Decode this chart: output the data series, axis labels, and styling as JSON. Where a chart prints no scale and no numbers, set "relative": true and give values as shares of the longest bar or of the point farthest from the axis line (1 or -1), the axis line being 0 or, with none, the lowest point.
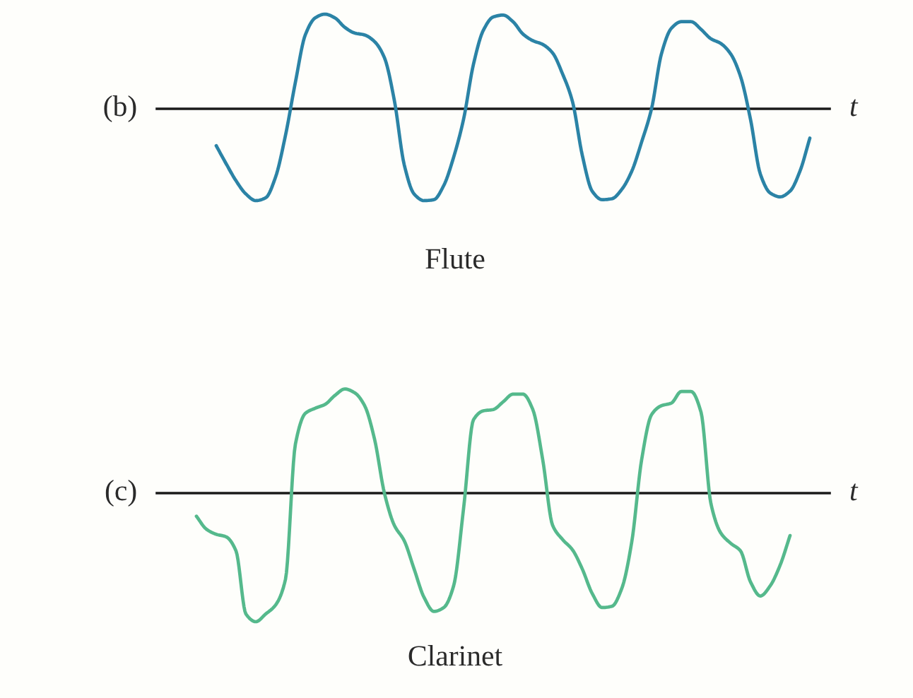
{
  "chart_data": [
    {
      "type": "line",
      "title": "Flute",
      "xlabel": "t",
      "annotations": [
        "(b)"
      ],
      "relative": true,
      "color": "#2b83a6",
      "categories": [
        null,
        null,
        null,
        null,
        null,
        null,
        null,
        null,
        null,
        null,
        null,
        null,
        null,
        null,
        null,
        null,
        null,
        null,
        null,
        null,
        null,
        null,
        null,
        null,
        null,
        null,
        null,
        null,
        null,
        null,
        null,
        null,
        null,
        null,
        null,
        null,
        null,
        null,
        null,
        null,
        null,
        null,
        null,
        null,
        null,
        null,
        null,
        null,
        null,
        null,
        null,
        null,
        null,
        null,
        null,
        null,
        null,
        null,
        null,
        null,
        null,
        null,
        null,
        null,
        null,
        null,
        null,
        null,
        null
      ],
      "values": [
        null,
        null,
        null,
        null,
        null,
        null,
        -0.39,
        -0.58,
        -0.76,
        -0.9,
        -0.97,
        -0.94,
        -0.72,
        -0.28,
        0.28,
        0.78,
        0.96,
        1.0,
        0.96,
        0.86,
        0.8,
        0.78,
        0.71,
        0.54,
        0.09,
        -0.59,
        -0.9,
        -0.97,
        -0.96,
        -0.81,
        -0.51,
        -0.11,
        0.47,
        0.83,
        0.97,
        0.99,
        0.92,
        0.79,
        0.72,
        0.68,
        0.59,
        0.37,
        0.08,
        -0.49,
        -0.87,
        -0.96,
        -0.95,
        -0.85,
        -0.66,
        -0.35,
        0,
        0.58,
        0.85,
        0.92,
        0.92,
        0.84,
        0.74,
        0.69,
        0.58,
        0.34,
        -0.11,
        -0.69,
        -0.89,
        -0.93,
        -0.87,
        -0.66,
        -0.31,
        null,
        null
      ]
    },
    {
      "type": "line",
      "title": "Clarinet",
      "xlabel": "t",
      "annotations": [
        "(c)"
      ],
      "relative": true,
      "color": "#55b98c",
      "categories": [
        null,
        null,
        null,
        null,
        null,
        null,
        null,
        null,
        null,
        null,
        null,
        null,
        null,
        null,
        null,
        null,
        null,
        null,
        null,
        null,
        null,
        null,
        null,
        null,
        null,
        null,
        null,
        null,
        null,
        null,
        null,
        null,
        null,
        null,
        null,
        null,
        null,
        null,
        null,
        null,
        null,
        null,
        null,
        null,
        null,
        null,
        null,
        null,
        null,
        null,
        null,
        null,
        null,
        null,
        null,
        null,
        null,
        null,
        null,
        null,
        null,
        null,
        null,
        null,
        null,
        null,
        null,
        null,
        null
      ],
      "values": [
        null,
        null,
        null,
        null,
        -0.18,
        -0.28,
        -0.32,
        -0.34,
        -0.45,
        -0.94,
        -1.0,
        -0.94,
        -0.87,
        -0.67,
        0.38,
        0.62,
        0.66,
        0.69,
        0.76,
        0.81,
        0.78,
        0.68,
        0.42,
        0,
        -0.25,
        -0.37,
        -0.59,
        -0.81,
        -0.92,
        -0.89,
        -0.72,
        -0.12,
        0.57,
        0.64,
        0.65,
        0.71,
        0.77,
        0.77,
        0.65,
        0.26,
        -0.25,
        -0.36,
        -0.44,
        -0.59,
        -0.78,
        -0.89,
        -0.88,
        -0.74,
        -0.38,
        0.26,
        0.61,
        0.68,
        0.7,
        0.79,
        0.79,
        0.63,
        -0.08,
        -0.31,
        -0.39,
        -0.45,
        -0.69,
        -0.8,
        -0.72,
        -0.56,
        -0.33,
        null,
        null,
        null,
        null
      ]
    }
  ]
}
